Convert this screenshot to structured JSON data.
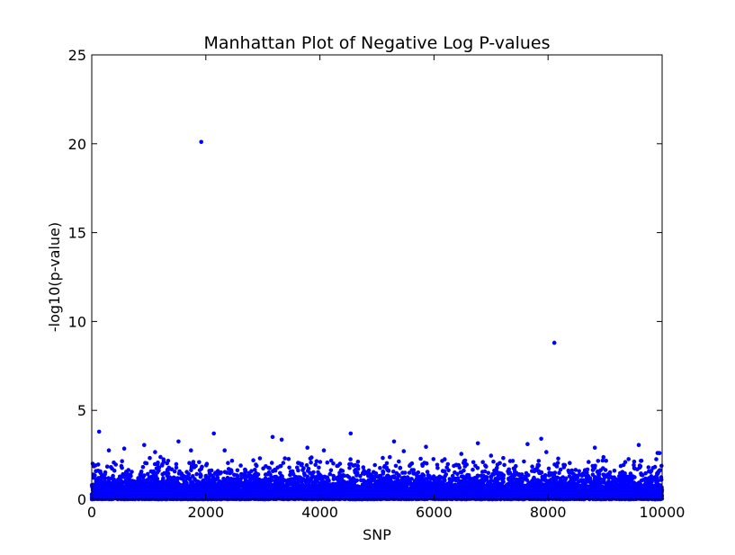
{
  "chart_data": {
    "type": "scatter",
    "title": "Manhattan Plot of Negative Log P-values",
    "xlabel": "SNP",
    "ylabel": "-log10(p-value)",
    "xlim": [
      0,
      10000
    ],
    "ylim": [
      0,
      25
    ],
    "xticks": [
      "0",
      "2000",
      "4000",
      "6000",
      "8000",
      "10000"
    ],
    "yticks": [
      "0",
      "5",
      "10",
      "15",
      "20",
      "25"
    ],
    "grid": false,
    "color": "#0000ff",
    "n_points": 10000,
    "background_distribution": "-log10(uniform p-values), values mostly 0 to 2",
    "series": [
      {
        "notable_points": [
          {
            "x": 1920,
            "y": 20.1
          },
          {
            "x": 8110,
            "y": 8.8
          },
          {
            "x": 130,
            "y": 3.8
          },
          {
            "x": 2140,
            "y": 3.7
          },
          {
            "x": 4540,
            "y": 3.7
          },
          {
            "x": 3170,
            "y": 3.5
          },
          {
            "x": 7880,
            "y": 3.4
          },
          {
            "x": 3330,
            "y": 3.35
          },
          {
            "x": 5300,
            "y": 3.25
          },
          {
            "x": 1520,
            "y": 3.25
          },
          {
            "x": 6770,
            "y": 3.15
          },
          {
            "x": 7640,
            "y": 3.1
          },
          {
            "x": 9590,
            "y": 3.05
          },
          {
            "x": 920,
            "y": 3.05
          },
          {
            "x": 5860,
            "y": 2.95
          },
          {
            "x": 3780,
            "y": 2.9
          },
          {
            "x": 8820,
            "y": 2.9
          },
          {
            "x": 570,
            "y": 2.85
          },
          {
            "x": 1740,
            "y": 2.75
          },
          {
            "x": 300,
            "y": 2.75
          },
          {
            "x": 2330,
            "y": 2.75
          },
          {
            "x": 4070,
            "y": 2.75
          },
          {
            "x": 5470,
            "y": 2.7
          },
          {
            "x": 7970,
            "y": 2.65
          },
          {
            "x": 1110,
            "y": 2.65
          },
          {
            "x": 9920,
            "y": 2.6
          },
          {
            "x": 6480,
            "y": 2.55
          },
          {
            "x": 7000,
            "y": 2.45
          }
        ]
      }
    ]
  }
}
